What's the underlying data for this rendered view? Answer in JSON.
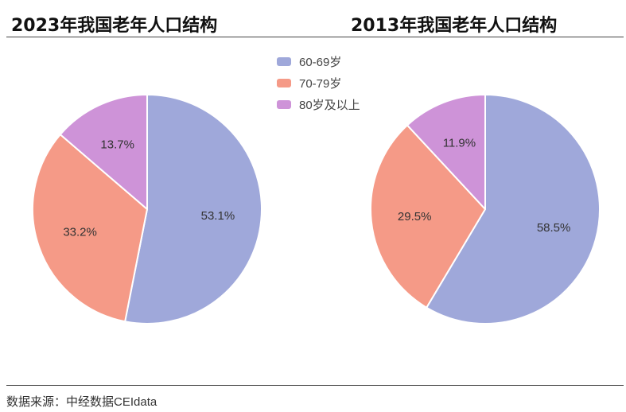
{
  "chart_data": [
    {
      "type": "pie",
      "title": "2023年我国老年人口结构",
      "labels": [
        "60-69岁",
        "70-79岁",
        "80岁及以上"
      ],
      "values": [
        53.1,
        33.2,
        13.7
      ],
      "value_labels": [
        "53.1%",
        "33.2%",
        "13.7%"
      ],
      "colors": [
        "#9fa8da",
        "#f59a87",
        "#ce93d8"
      ],
      "legend_position": "top-center"
    },
    {
      "type": "pie",
      "title": "2013年我国老年人口结构",
      "labels": [
        "60-69岁",
        "70-79岁",
        "80岁及以上"
      ],
      "values": [
        58.5,
        29.5,
        11.9
      ],
      "value_labels": [
        "58.5%",
        "29.5%",
        "11.9%"
      ],
      "colors": [
        "#9fa8da",
        "#f59a87",
        "#ce93d8"
      ],
      "legend_position": "top-center"
    }
  ],
  "legend": {
    "items": [
      {
        "label": "60-69岁",
        "color": "#9fa8da"
      },
      {
        "label": "70-79岁",
        "color": "#f59a87"
      },
      {
        "label": "80岁及以上",
        "color": "#ce93d8"
      }
    ]
  },
  "source": "数据来源：中经数据CEIdata"
}
